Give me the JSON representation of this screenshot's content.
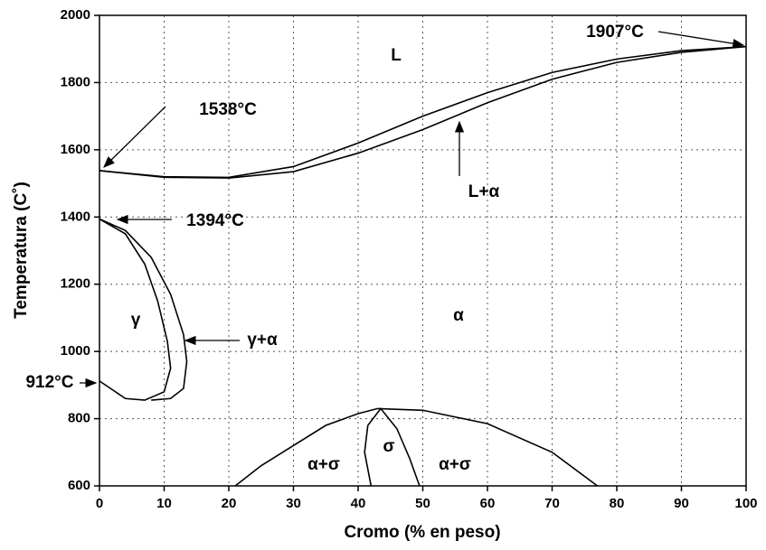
{
  "chart_data": {
    "type": "line",
    "xlabel": "Cromo (% en peso)",
    "ylabel": "Temperatura (C˚)",
    "xlim": [
      0,
      100
    ],
    "xticks": [
      0,
      10,
      20,
      30,
      40,
      50,
      60,
      70,
      80,
      90,
      100
    ],
    "ylim": [
      600,
      2000
    ],
    "yticks": [
      600,
      800,
      1000,
      1200,
      1400,
      1600,
      1800,
      2000
    ],
    "grid": true,
    "series": [
      {
        "name": "liquidus",
        "color": "#000000",
        "x": [
          0,
          10,
          20,
          30,
          40,
          50,
          60,
          70,
          80,
          90,
          100
        ],
        "values": [
          1538,
          1520,
          1518,
          1550,
          1620,
          1700,
          1770,
          1830,
          1870,
          1895,
          1907
        ]
      },
      {
        "name": "solidus",
        "color": "#000000",
        "x": [
          0,
          10,
          20,
          30,
          40,
          50,
          60,
          70,
          80,
          90,
          100
        ],
        "values": [
          1538,
          1518,
          1516,
          1535,
          1590,
          1660,
          1740,
          1810,
          1860,
          1890,
          1907
        ]
      },
      {
        "name": "gamma-alpha",
        "color": "#000000",
        "x": [
          0,
          4,
          8,
          11,
          13,
          13.5,
          13,
          11,
          8
        ],
        "values": [
          1394,
          1360,
          1280,
          1170,
          1050,
          970,
          890,
          860,
          855
        ]
      },
      {
        "name": "gamma",
        "color": "#000000",
        "x": [
          0,
          4,
          7,
          9,
          10.5,
          11,
          10,
          7,
          4,
          0
        ],
        "values": [
          1394,
          1350,
          1260,
          1150,
          1030,
          950,
          880,
          855,
          860,
          912
        ]
      },
      {
        "name": "alpha-sigma",
        "color": "#000000",
        "x": [
          21,
          25,
          30,
          35,
          40,
          43,
          50,
          60,
          70,
          77
        ],
        "values": [
          600,
          660,
          720,
          780,
          815,
          830,
          825,
          785,
          700,
          600
        ]
      },
      {
        "name": "sigma",
        "color": "#000000",
        "x": [
          42,
          41,
          41.5,
          43.5,
          46,
          48,
          49.5
        ],
        "values": [
          600,
          700,
          780,
          830,
          770,
          680,
          600
        ]
      }
    ],
    "annotations": [
      "L",
      "1907°C",
      "1538°C",
      "L+α",
      "1394°C",
      "γ",
      "γ+α",
      "α",
      "912°C",
      "σ",
      "α+σ",
      "α+σ"
    ]
  }
}
